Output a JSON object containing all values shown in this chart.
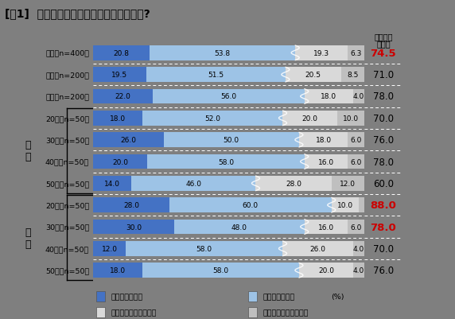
{
  "title": "[図1]  マスク内のニオイが気になりますか?",
  "col_header_line1": "気になる",
  "col_header_line2": "（計）",
  "categories": [
    "全体（n=400）",
    "男性（n=200）",
    "女性（n=200）",
    "20代（n=50）",
    "30代（n=50）",
    "40代（n=50）",
    "50代（n=50）",
    "20代（n=50）",
    "30代（n=50）",
    "40代（n=50）",
    "50代（n=50）"
  ],
  "values": [
    [
      20.8,
      53.8,
      19.3,
      6.3
    ],
    [
      19.5,
      51.5,
      20.5,
      8.5
    ],
    [
      22.0,
      56.0,
      18.0,
      4.0
    ],
    [
      18.0,
      52.0,
      20.0,
      10.0
    ],
    [
      26.0,
      50.0,
      18.0,
      6.0
    ],
    [
      20.0,
      58.0,
      16.0,
      6.0
    ],
    [
      14.0,
      46.0,
      28.0,
      12.0
    ],
    [
      28.0,
      60.0,
      10.0,
      2.0
    ],
    [
      30.0,
      48.0,
      16.0,
      6.0
    ],
    [
      12.0,
      58.0,
      26.0,
      4.0
    ],
    [
      18.0,
      58.0,
      20.0,
      4.0
    ]
  ],
  "totals": [
    "74.5",
    "71.0",
    "78.0",
    "70.0",
    "76.0",
    "78.0",
    "60.0",
    "88.0",
    "78.0",
    "70.0",
    "76.0"
  ],
  "total_red": [
    true,
    false,
    false,
    false,
    false,
    false,
    false,
    true,
    true,
    false,
    false
  ],
  "colors": [
    "#4472C4",
    "#9DC3E6",
    "#D9D9D9",
    "#BFBFBF"
  ],
  "legend_labels": [
    "いつも気になる",
    "たまに気になる",
    "ほとんど気にならない",
    "気になったことはない"
  ],
  "bg_color": "#7f7f7f",
  "male_label": "男\n性",
  "female_label": "女\n性",
  "pct_label": "(%)"
}
